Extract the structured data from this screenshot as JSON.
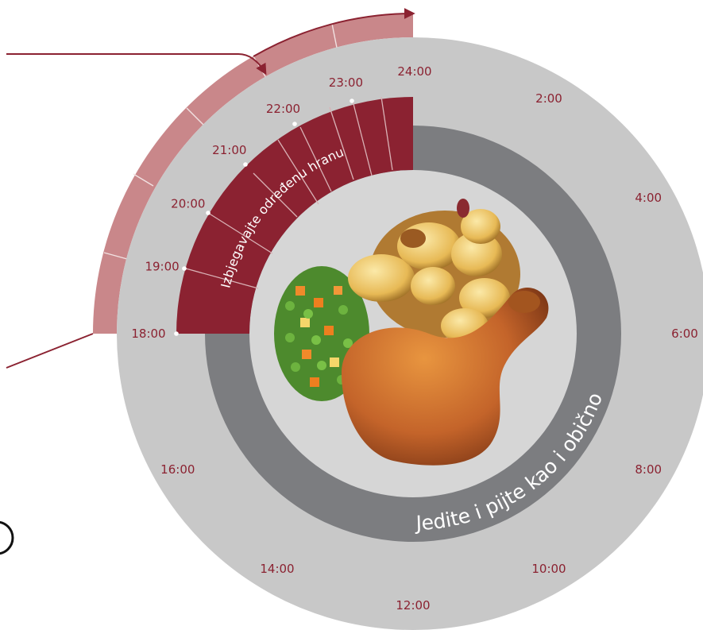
{
  "diagram": {
    "hours": [
      {
        "text": "24:00",
        "angle": 0
      },
      {
        "text": "2:00",
        "angle": 30
      },
      {
        "text": "4:00",
        "angle": 60
      },
      {
        "text": "6:00",
        "angle": 90
      },
      {
        "text": "8:00",
        "angle": 120
      },
      {
        "text": "10:00",
        "angle": 150
      },
      {
        "text": "12:00",
        "angle": 180
      },
      {
        "text": "14:00",
        "angle": 210
      },
      {
        "text": "16:00",
        "angle": 240
      },
      {
        "text": "18:00",
        "angle": 270
      },
      {
        "text": "19:00",
        "angle": 285
      },
      {
        "text": "20:00",
        "angle": 300
      },
      {
        "text": "21:00",
        "angle": 315
      },
      {
        "text": "22:00",
        "angle": 330
      },
      {
        "text": "23:00",
        "angle": 345
      }
    ],
    "avoid_label": "Izbjegavajte određenu hranu",
    "eat_label": "Jedite i pijte kao i obično",
    "illustration": "roast-chicken-with-potatoes-and-vegetables",
    "colors": {
      "outer_ring": "#c8c8c8",
      "inner_ring": "#7c7d80",
      "avoid_sector": "#8b2231",
      "outer_band": "#c9878a",
      "hour_text": "#8b2231",
      "arrow": "#8b2231"
    }
  }
}
